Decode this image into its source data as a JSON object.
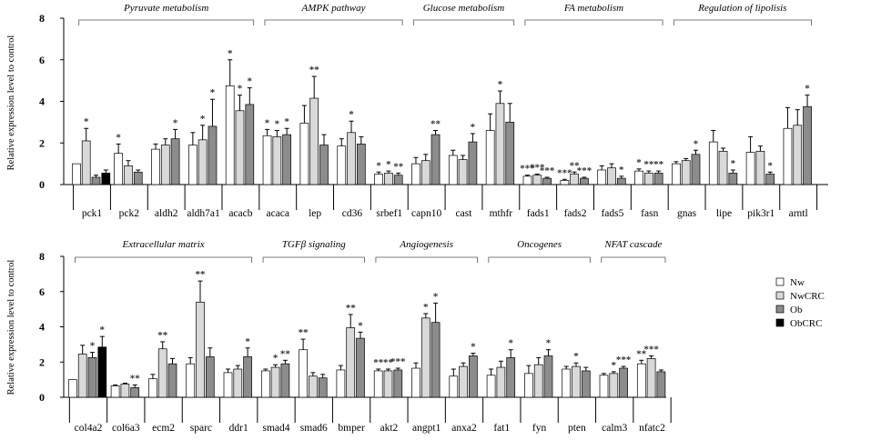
{
  "figure": {
    "ylabel": "Relative expression level to control",
    "colors": {
      "Nw": "#ffffff",
      "NwCRC": "#d9d9d9",
      "Ob": "#8c8c8c",
      "ObCRC": "#000000"
    },
    "legend": [
      "Nw",
      "NwCRC",
      "Ob",
      "ObCRC"
    ]
  },
  "chart_data": [
    {
      "type": "bar",
      "title": "",
      "ylabel": "Relative expression level to control",
      "ylim": [
        0,
        8
      ],
      "yticks": [
        0,
        2,
        4,
        6,
        8
      ],
      "series_names": [
        "Nw",
        "NwCRC",
        "Ob",
        "ObCRC"
      ],
      "groups": [
        {
          "label": "Pyruvate metabolism",
          "genes": [
            "pck1",
            "pck2",
            "aldh2",
            "aldh7a1",
            "acacb"
          ]
        },
        {
          "label": "AMPK pathway",
          "genes": [
            "acaca",
            "lep",
            "cd36",
            "srbef1"
          ]
        },
        {
          "label": "Glucose metabolism",
          "genes": [
            "capn10",
            "cast",
            "mthfr"
          ]
        },
        {
          "label": "FA metabolism",
          "genes": [
            "fads1",
            "fads2",
            "fads5",
            "fasn"
          ]
        },
        {
          "label": "Regulation of lipolisis",
          "genes": [
            "gnas",
            "lipe",
            "pik3r1",
            "arntl"
          ]
        }
      ],
      "categories": [
        {
          "name": "pck1",
          "values": [
            1.0,
            2.1,
            0.35,
            0.55
          ],
          "errors": [
            0,
            0.6,
            0.1,
            0.15
          ],
          "sig": [
            "",
            "*",
            "",
            ""
          ]
        },
        {
          "name": "pck2",
          "values": [
            1.5,
            0.9,
            0.6,
            null
          ],
          "errors": [
            0.45,
            0.25,
            0.1,
            0
          ],
          "sig": [
            "*",
            "",
            "",
            ""
          ]
        },
        {
          "name": "aldh2",
          "values": [
            1.7,
            1.9,
            2.2,
            null
          ],
          "errors": [
            0.25,
            0.3,
            0.45,
            0
          ],
          "sig": [
            "",
            "",
            "*",
            ""
          ]
        },
        {
          "name": "aldh7a1",
          "values": [
            1.9,
            2.15,
            2.8,
            null
          ],
          "errors": [
            0.6,
            0.7,
            1.3,
            0
          ],
          "sig": [
            "",
            "*",
            "*",
            ""
          ]
        },
        {
          "name": "acacb",
          "values": [
            4.75,
            3.55,
            3.85,
            null
          ],
          "errors": [
            1.25,
            0.75,
            0.8,
            0
          ],
          "sig": [
            "*",
            "*",
            "*",
            ""
          ]
        },
        {
          "name": "acaca",
          "values": [
            2.35,
            2.3,
            2.4,
            null
          ],
          "errors": [
            0.3,
            0.3,
            0.3,
            0
          ],
          "sig": [
            "*",
            "*",
            "*",
            ""
          ]
        },
        {
          "name": "lep",
          "values": [
            2.95,
            4.15,
            1.9,
            null
          ],
          "errors": [
            0.85,
            1.05,
            0.5,
            0
          ],
          "sig": [
            "",
            "**",
            "",
            ""
          ]
        },
        {
          "name": "cd36",
          "values": [
            1.85,
            2.5,
            1.95,
            null
          ],
          "errors": [
            0.35,
            0.55,
            0.35,
            0
          ],
          "sig": [
            "",
            "*",
            "",
            ""
          ]
        },
        {
          "name": "srbef1",
          "values": [
            0.5,
            0.55,
            0.45,
            null
          ],
          "errors": [
            0.1,
            0.1,
            0.1,
            0
          ],
          "sig": [
            "*",
            "*",
            "**",
            ""
          ]
        },
        {
          "name": "capn10",
          "values": [
            1.0,
            1.15,
            2.4,
            null
          ],
          "errors": [
            0.3,
            0.3,
            0.2,
            0
          ],
          "sig": [
            "",
            "",
            "**",
            ""
          ]
        },
        {
          "name": "cast",
          "values": [
            1.4,
            1.2,
            2.05,
            null
          ],
          "errors": [
            0.25,
            0.2,
            0.4,
            0
          ],
          "sig": [
            "",
            "",
            "*",
            ""
          ]
        },
        {
          "name": "mthfr",
          "values": [
            2.6,
            3.9,
            3.0,
            null
          ],
          "errors": [
            0.8,
            0.6,
            0.9,
            0
          ],
          "sig": [
            "",
            "*",
            "",
            ""
          ]
        },
        {
          "name": "fads1",
          "values": [
            0.4,
            0.45,
            0.3,
            null
          ],
          "errors": [
            0.05,
            0.05,
            0.05,
            0
          ],
          "sig": [
            "***",
            "***",
            "***",
            ""
          ]
        },
        {
          "name": "fads2",
          "values": [
            0.2,
            0.5,
            0.3,
            null
          ],
          "errors": [
            0.05,
            0.1,
            0.05,
            0
          ],
          "sig": [
            "***",
            "**",
            "***",
            ""
          ]
        },
        {
          "name": "fads5",
          "values": [
            0.7,
            0.8,
            0.3,
            null
          ],
          "errors": [
            0.2,
            0.2,
            0.1,
            0
          ],
          "sig": [
            "",
            "",
            "*",
            ""
          ]
        },
        {
          "name": "fasn",
          "values": [
            0.65,
            0.55,
            0.55,
            null
          ],
          "errors": [
            0.1,
            0.1,
            0.1,
            0
          ],
          "sig": [
            "*",
            "**",
            "**",
            ""
          ]
        },
        {
          "name": "gnas",
          "values": [
            1.0,
            1.15,
            1.45,
            null
          ],
          "errors": [
            0.1,
            0.1,
            0.2,
            0
          ],
          "sig": [
            "",
            "",
            "*",
            ""
          ]
        },
        {
          "name": "lipe",
          "values": [
            2.05,
            1.6,
            0.55,
            null
          ],
          "errors": [
            0.55,
            0.15,
            0.15,
            0
          ],
          "sig": [
            "",
            "",
            "*",
            ""
          ]
        },
        {
          "name": "pik3r1",
          "values": [
            1.55,
            1.6,
            0.5,
            null
          ],
          "errors": [
            0.75,
            0.25,
            0.1,
            0
          ],
          "sig": [
            "",
            "",
            "*",
            ""
          ]
        },
        {
          "name": "arntl",
          "values": [
            2.7,
            2.85,
            3.75,
            null
          ],
          "errors": [
            1.0,
            0.75,
            0.55,
            0
          ],
          "sig": [
            "",
            "",
            "*",
            ""
          ]
        }
      ]
    },
    {
      "type": "bar",
      "title": "",
      "ylabel": "Relative expression level to control",
      "ylim": [
        0,
        8
      ],
      "yticks": [
        0,
        2,
        4,
        6,
        8
      ],
      "series_names": [
        "Nw",
        "NwCRC",
        "Ob",
        "ObCRC"
      ],
      "groups": [
        {
          "label": "Extracellular matrix",
          "genes": [
            "col4a2",
            "col6a3",
            "ecm2",
            "sparc",
            "ddr1"
          ]
        },
        {
          "label": "TGFβ signaling",
          "genes": [
            "smad4",
            "smad6",
            "bmper"
          ]
        },
        {
          "label": "Angiogenesis",
          "genes": [
            "akt2",
            "angpt1",
            "anxa2"
          ]
        },
        {
          "label": "Oncogenes",
          "genes": [
            "fat1",
            "fyn",
            "pten"
          ]
        },
        {
          "label": "NFAT cascade",
          "genes": [
            "calm3",
            "nfatc2"
          ]
        }
      ],
      "categories": [
        {
          "name": "col4a2",
          "values": [
            1.0,
            2.45,
            2.25,
            2.85
          ],
          "errors": [
            0,
            0.5,
            0.3,
            0.6
          ],
          "sig": [
            "",
            "",
            "*",
            "*"
          ]
        },
        {
          "name": "col6a3",
          "values": [
            0.65,
            0.75,
            0.55,
            null
          ],
          "errors": [
            0.05,
            0.05,
            0.15,
            0
          ],
          "sig": [
            "",
            "",
            "**",
            ""
          ]
        },
        {
          "name": "ecm2",
          "values": [
            1.05,
            2.75,
            1.9,
            null
          ],
          "errors": [
            0.25,
            0.4,
            0.3,
            0
          ],
          "sig": [
            "",
            "**",
            "",
            ""
          ]
        },
        {
          "name": "sparc",
          "values": [
            1.9,
            5.4,
            2.3,
            null
          ],
          "errors": [
            0.35,
            1.2,
            0.5,
            0
          ],
          "sig": [
            "",
            "**",
            "",
            ""
          ]
        },
        {
          "name": "ddr1",
          "values": [
            1.4,
            1.6,
            2.3,
            null
          ],
          "errors": [
            0.2,
            0.2,
            0.5,
            0
          ],
          "sig": [
            "",
            "",
            "*",
            ""
          ]
        },
        {
          "name": "smad4",
          "values": [
            1.5,
            1.7,
            1.9,
            null
          ],
          "errors": [
            0.1,
            0.15,
            0.2,
            0
          ],
          "sig": [
            "",
            "*",
            "**",
            ""
          ]
        },
        {
          "name": "smad6",
          "values": [
            2.7,
            1.2,
            1.1,
            null
          ],
          "errors": [
            0.6,
            0.2,
            0.2,
            0
          ],
          "sig": [
            "**",
            "",
            "",
            ""
          ]
        },
        {
          "name": "bmper",
          "values": [
            1.55,
            3.95,
            3.35,
            null
          ],
          "errors": [
            0.25,
            0.75,
            0.35,
            0
          ],
          "sig": [
            "",
            "**",
            "*",
            ""
          ]
        },
        {
          "name": "akt2",
          "values": [
            1.5,
            1.5,
            1.55,
            null
          ],
          "errors": [
            0.1,
            0.1,
            0.1,
            0
          ],
          "sig": [
            "**",
            "**",
            "***",
            ""
          ]
        },
        {
          "name": "angpt1",
          "values": [
            1.65,
            4.5,
            4.25,
            null
          ],
          "errors": [
            0.3,
            0.25,
            1.1,
            0
          ],
          "sig": [
            "",
            "*",
            "*",
            ""
          ]
        },
        {
          "name": "anxa2",
          "values": [
            1.2,
            1.75,
            2.35,
            null
          ],
          "errors": [
            0.4,
            0.2,
            0.15,
            0
          ],
          "sig": [
            "",
            "",
            "*",
            ""
          ]
        },
        {
          "name": "fat1",
          "values": [
            1.25,
            1.7,
            2.25,
            null
          ],
          "errors": [
            0.35,
            0.35,
            0.45,
            0
          ],
          "sig": [
            "",
            "",
            "*",
            ""
          ]
        },
        {
          "name": "fyn",
          "values": [
            1.35,
            1.85,
            2.35,
            null
          ],
          "errors": [
            0.45,
            0.4,
            0.35,
            0
          ],
          "sig": [
            "",
            "",
            "*",
            ""
          ]
        },
        {
          "name": "pten",
          "values": [
            1.6,
            1.75,
            1.5,
            null
          ],
          "errors": [
            0.15,
            0.2,
            0.2,
            0
          ],
          "sig": [
            "",
            "*",
            "",
            ""
          ]
        },
        {
          "name": "calm3",
          "values": [
            1.25,
            1.35,
            1.65,
            null
          ],
          "errors": [
            0.1,
            0.1,
            0.1,
            0
          ],
          "sig": [
            "",
            "*",
            "***",
            ""
          ]
        },
        {
          "name": "nfatc2",
          "values": [
            1.9,
            2.2,
            1.45,
            null
          ],
          "errors": [
            0.2,
            0.15,
            0.1,
            0
          ],
          "sig": [
            "**",
            "***",
            "",
            ""
          ]
        }
      ]
    }
  ]
}
